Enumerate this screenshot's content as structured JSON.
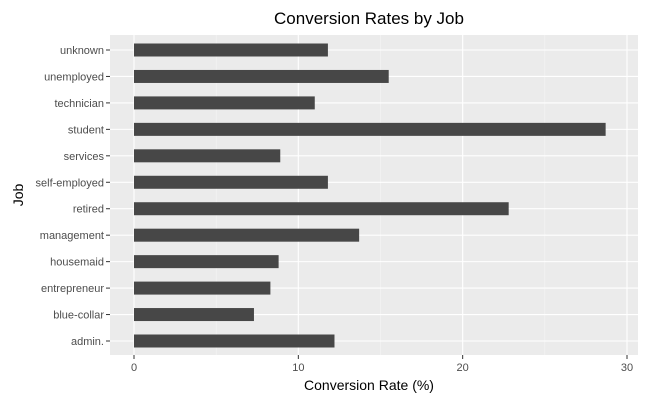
{
  "chart_data": {
    "type": "bar",
    "orientation": "horizontal",
    "title": "Conversion Rates by Job",
    "xlabel": "Conversion Rate (%)",
    "ylabel": "Job",
    "categories": [
      "admin.",
      "blue-collar",
      "entrepreneur",
      "housemaid",
      "management",
      "retired",
      "self-employed",
      "services",
      "student",
      "technician",
      "unemployed",
      "unknown"
    ],
    "values": [
      12.2,
      7.3,
      8.3,
      8.8,
      13.7,
      22.8,
      11.8,
      8.9,
      28.7,
      11.0,
      15.5,
      11.8
    ],
    "xlim": [
      0,
      30
    ],
    "xticks": [
      0,
      10,
      20,
      30
    ],
    "grid": true,
    "colors": {
      "bar": "#474747",
      "panel_background": "#ebebeb",
      "grid_major": "#ffffff",
      "grid_minor": "#f5f5f5",
      "tick_mark": "#333333"
    }
  }
}
